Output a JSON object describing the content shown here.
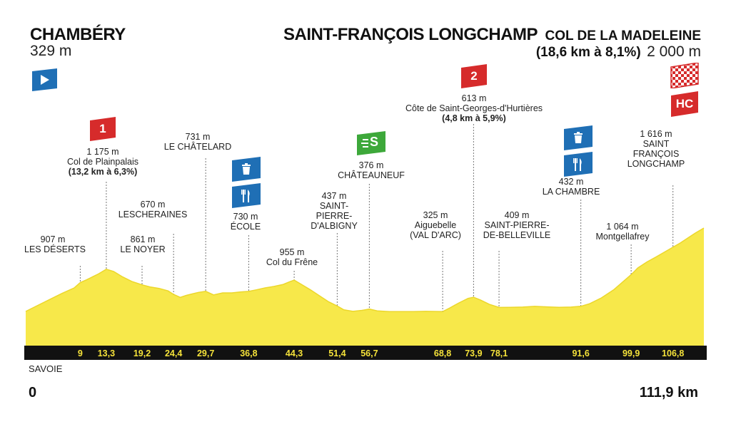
{
  "start": {
    "name": "CHAMBÉRY",
    "altitude": "329 m"
  },
  "finish": {
    "name": "SAINT-FRANÇOIS LONGCHAMP",
    "climb_name": "COL DE LA MADELEINE",
    "climb_stats": "(18,6 km à 8,1%)",
    "altitude": "2 000 m"
  },
  "region": "SAVOIE",
  "distance_start": "0",
  "distance_total": "111,9 km",
  "colors": {
    "profile_fill": "#f7e84a",
    "profile_stroke": "#ecd72b",
    "axis_bar": "#111111",
    "axis_text": "#f5e23a",
    "start_badge": "#1f6fb5",
    "climb_badge": "#d62b2b",
    "sprint_badge": "#3da83a",
    "feed_badge": "#1f6fb5",
    "guide_line": "#777777"
  },
  "markers": {
    "start": {
      "icon": "start-arrow-icon"
    },
    "climb_1": {
      "label": "1",
      "altitude": "1 175 m",
      "name": "Col de Plainpalais",
      "stats": "(13,2 km à 6,3%)"
    },
    "climb_2": {
      "label": "2",
      "altitude": "613 m",
      "name": "Côte de Saint-Georges-d'Hurtières",
      "stats": "(4,8 km à 5,9%)"
    },
    "climb_hc": {
      "label": "HC",
      "icon": "checkered-flag-icon"
    },
    "sprint": {
      "label": "S",
      "altitude": "376 m",
      "name": "CHÂTEAUNEUF",
      "icon": "sprint-icon"
    },
    "feed_1": {
      "icons": [
        "bin-icon",
        "fork-knife-icon"
      ]
    },
    "feed_2": {
      "icons": [
        "bin-icon",
        "fork-knife-icon"
      ]
    }
  },
  "places": [
    {
      "altitude": "907 m",
      "lines": [
        "LES DÉSERTS"
      ]
    },
    {
      "altitude": "861 m",
      "lines": [
        "LE NOYER"
      ]
    },
    {
      "altitude": "670 m",
      "lines": [
        "LESCHERAINES"
      ]
    },
    {
      "altitude": "731 m",
      "lines": [
        "LE CHÂTELARD"
      ]
    },
    {
      "altitude": "730 m",
      "lines": [
        "ÉCOLE"
      ]
    },
    {
      "altitude": "955 m",
      "lines": [
        "Col du Frêne"
      ]
    },
    {
      "altitude": "437 m",
      "lines": [
        "SAINT-",
        "PIERRE-",
        "D'ALBIGNY"
      ]
    },
    {
      "altitude": "325 m",
      "lines": [
        "Aiguebelle",
        "(VAL D'ARC)"
      ]
    },
    {
      "altitude": "409 m",
      "lines": [
        "SAINT-PIERRE-",
        "DE-BELLEVILLE"
      ]
    },
    {
      "altitude": "432 m",
      "lines": [
        "LA CHAMBRE"
      ]
    },
    {
      "altitude": "1 064 m",
      "lines": [
        "Montgellafrey"
      ]
    },
    {
      "altitude": "1 616 m",
      "lines": [
        "SAINT",
        "FRANÇOIS",
        "LONGCHAMP"
      ]
    }
  ],
  "chart_data": {
    "type": "area",
    "xlabel": "",
    "ylabel": "",
    "xlim": [
      0,
      111.9
    ],
    "x_tick_labels": [
      "9",
      "13,3",
      "19,2",
      "24,4",
      "29,7",
      "36,8",
      "44,3",
      "51,4",
      "56,7",
      "68,8",
      "73,9",
      "78,1",
      "91,6",
      "99,9",
      "106,8"
    ],
    "x_ticks": [
      9,
      13.3,
      19.2,
      24.4,
      29.7,
      36.8,
      44.3,
      51.4,
      56.7,
      68.8,
      73.9,
      78.1,
      91.6,
      99.9,
      106.8
    ],
    "series": [
      {
        "x": [
          0,
          2,
          4,
          6,
          8,
          9,
          10,
          11,
          12,
          13.3,
          14.5,
          16,
          17.5,
          19.2,
          20.5,
          22,
          23.5,
          24.4,
          25.5,
          26.5,
          27.5,
          28.5,
          29.7,
          31,
          32.5,
          34,
          35.5,
          36.8,
          38,
          39.5,
          41,
          42.5,
          43.5,
          44.3,
          45.5,
          47,
          48.5,
          50,
          51.4,
          52.5,
          54,
          55.5,
          56.7,
          58,
          60,
          62,
          64,
          66,
          68.8,
          70,
          71.5,
          73,
          73.9,
          75,
          76.5,
          78.1,
          80,
          82,
          84,
          86,
          88,
          90,
          91.6,
          93,
          95,
          97,
          99.9,
          101,
          102.5,
          104,
          106.8,
          108,
          109.5,
          110.5,
          111.9
        ],
        "y": [
          329,
          450,
          570,
          690,
          800,
          907,
          960,
          1020,
          1080,
          1175,
          1130,
          1020,
          930,
          861,
          820,
          790,
          740,
          670,
          610,
          650,
          680,
          710,
          731,
          660,
          700,
          700,
          720,
          730,
          760,
          800,
          830,
          870,
          920,
          955,
          870,
          760,
          640,
          520,
          437,
          360,
          330,
          350,
          376,
          340,
          325,
          325,
          325,
          330,
          325,
          400,
          500,
          590,
          613,
          560,
          470,
          409,
          410,
          415,
          430,
          420,
          410,
          415,
          432,
          480,
          600,
          760,
          1064,
          1200,
          1320,
          1420,
          1616,
          1700,
          1820,
          1900,
          2000
        ]
      }
    ]
  }
}
